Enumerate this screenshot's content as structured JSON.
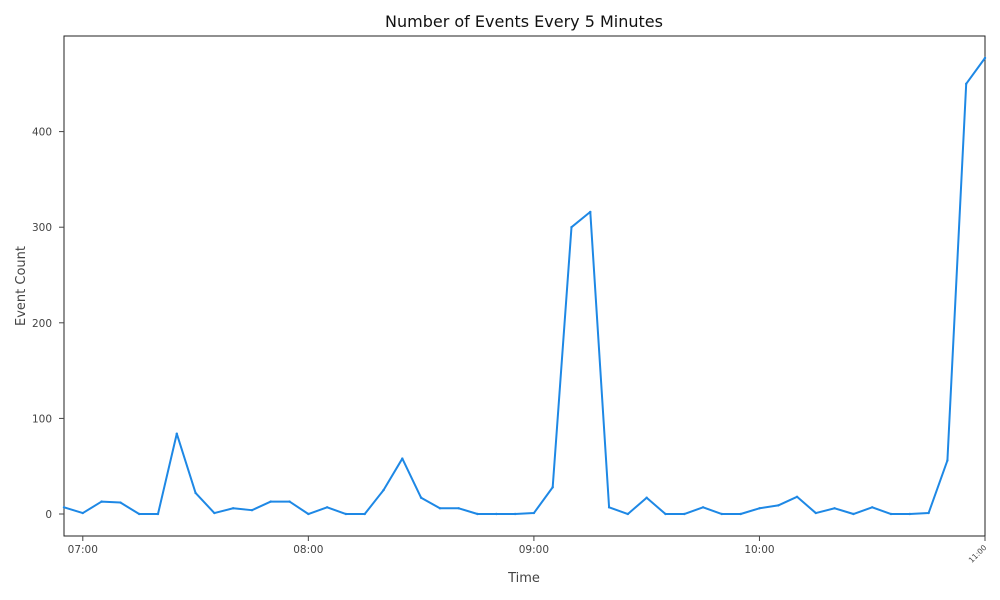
{
  "chart_data": {
    "type": "line",
    "title": "Number of Events Every 5 Minutes",
    "xlabel": "Time",
    "ylabel": "Event Count",
    "x_tick_labels": [
      "07:00",
      "08:00",
      "09:00",
      "10:00",
      "11:00"
    ],
    "y_tick_labels": [
      "0",
      "100",
      "200",
      "300",
      "400"
    ],
    "xlim": [
      "06:55",
      "11:00"
    ],
    "ylim": [
      -23,
      500
    ],
    "grid": false,
    "legend": "none",
    "line_color": "#1e88e5",
    "series": [
      {
        "x": [
          "06:55",
          "07:00",
          "07:05",
          "07:10",
          "07:15",
          "07:20",
          "07:25",
          "07:30",
          "07:35",
          "07:40",
          "07:45",
          "07:50",
          "07:55",
          "08:00",
          "08:05",
          "08:10",
          "08:15",
          "08:20",
          "08:25",
          "08:30",
          "08:35",
          "08:40",
          "08:45",
          "08:50",
          "08:55",
          "09:00",
          "09:05",
          "09:10",
          "09:15",
          "09:20",
          "09:25",
          "09:30",
          "09:35",
          "09:40",
          "09:45",
          "09:50",
          "09:55",
          "10:00",
          "10:05",
          "10:10",
          "10:15",
          "10:20",
          "10:25",
          "10:30",
          "10:35",
          "10:40",
          "10:45",
          "10:50",
          "10:55",
          "11:00"
        ],
        "y": [
          7,
          1,
          13,
          12,
          0,
          0,
          84,
          22,
          1,
          6,
          4,
          13,
          13,
          0,
          7,
          0,
          0,
          25,
          58,
          17,
          6,
          6,
          0,
          0,
          0,
          1,
          28,
          300,
          316,
          7,
          0,
          17,
          0,
          0,
          7,
          0,
          0,
          6,
          9,
          18,
          1,
          6,
          0,
          7,
          0,
          0,
          1,
          56,
          450,
          477
        ]
      }
    ]
  }
}
